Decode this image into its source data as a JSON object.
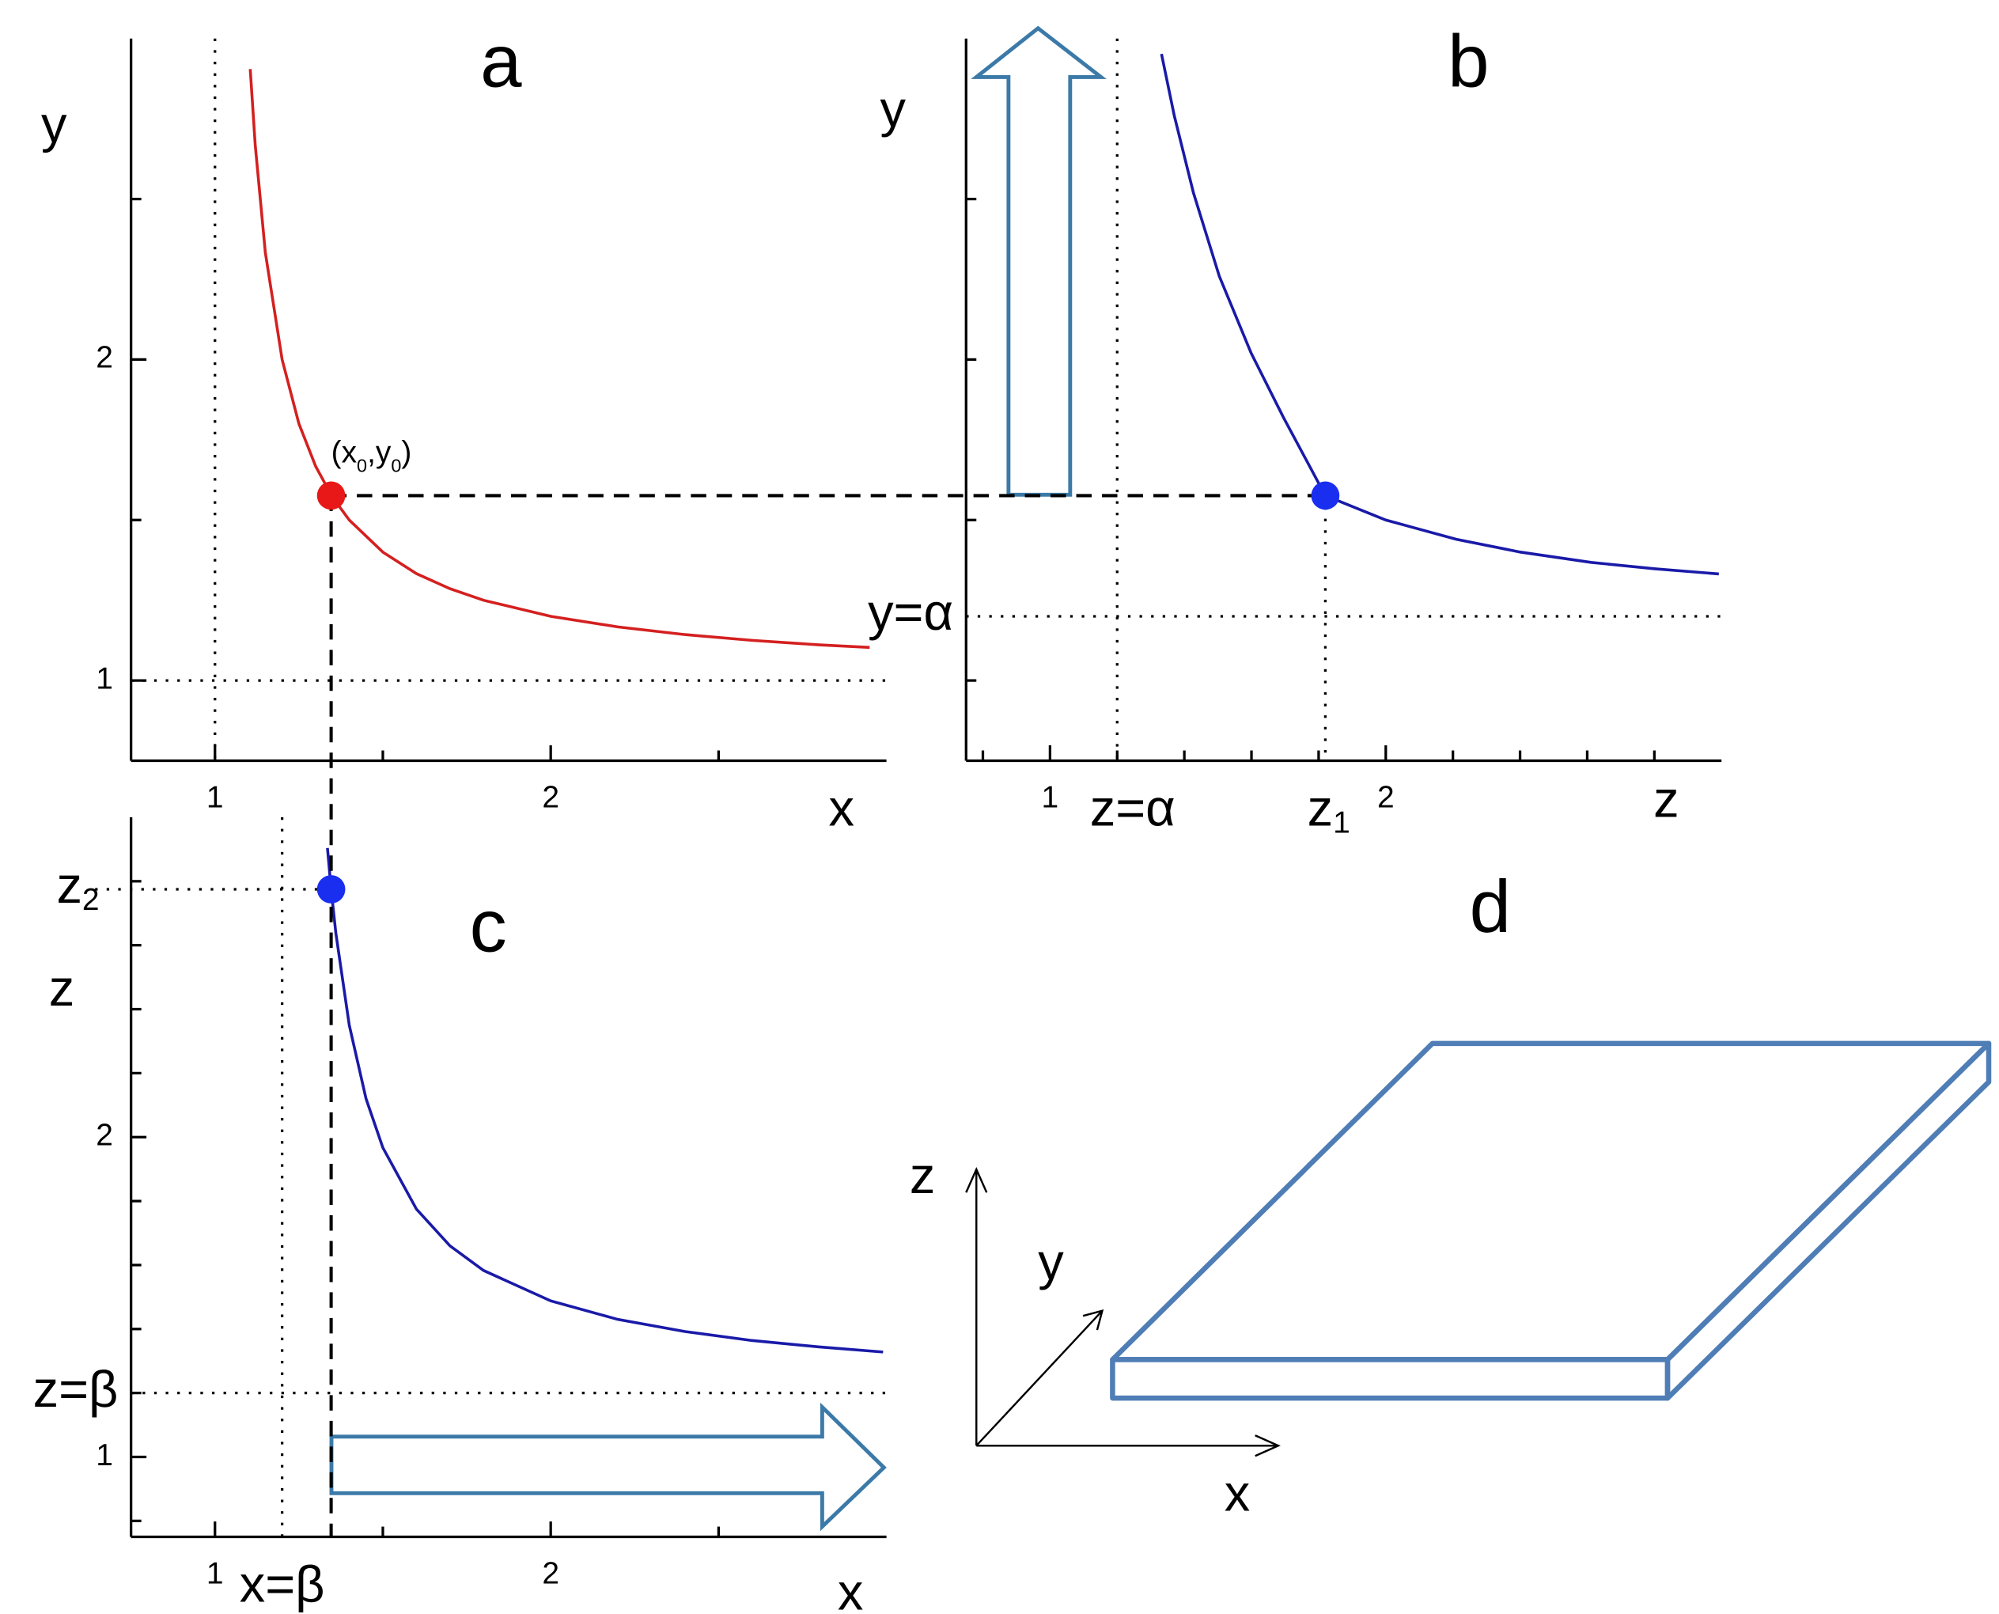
{
  "chart_data": [
    {
      "type": "line",
      "title": "a",
      "xlabel": "x",
      "ylabel": "y",
      "xlim": [
        0.75,
        3
      ],
      "ylim": [
        0.75,
        3
      ],
      "xticks": [
        1,
        2
      ],
      "yticks": [
        1,
        2
      ],
      "x_tick_marks": [
        1.5,
        2.5
      ],
      "y_tick_marks": [
        1.5,
        2.5
      ],
      "vline": 1,
      "hline": 1,
      "series": [
        {
          "color": "#d42020",
          "x": [
            1.105,
            1.12,
            1.15,
            1.2,
            1.25,
            1.3,
            1.35,
            1.4,
            1.5,
            1.6,
            1.7,
            1.8,
            2.0,
            2.2,
            2.4,
            2.6,
            2.8,
            2.95
          ],
          "values": [
            2.905,
            2.667,
            2.333,
            2.0,
            1.8,
            1.667,
            1.571,
            1.5,
            1.4,
            1.333,
            1.286,
            1.25,
            1.2,
            1.167,
            1.143,
            1.125,
            1.111,
            1.103
          ]
        }
      ],
      "point": {
        "x": 1.346,
        "y": 1.576,
        "color": "#e81818",
        "label": [
          "(x",
          "0",
          ",y",
          "0",
          ")"
        ]
      }
    },
    {
      "type": "line",
      "title": "b",
      "xlabel": "z",
      "ylabel": "y",
      "xlim": [
        0.75,
        3
      ],
      "ylim": [
        0.75,
        3
      ],
      "xticks": [
        1,
        2
      ],
      "x_tick_marks": [
        0.8,
        1.2,
        1.4,
        1.6,
        1.8,
        2.2,
        2.4,
        2.6,
        2.8
      ],
      "y_tick_marks": [
        1,
        1.5,
        2,
        2.5
      ],
      "vline": 1.2,
      "hline": 1.2,
      "vline_label": "z=α",
      "hline_label": "y=α",
      "series": [
        {
          "color": "#1a1aa8",
          "x": [
            1.332,
            1.37,
            1.427,
            1.504,
            1.599,
            1.695,
            1.82,
            2.0,
            2.21,
            2.401,
            2.611,
            2.802,
            2.992
          ],
          "values": [
            2.952,
            2.76,
            2.52,
            2.26,
            2.02,
            1.82,
            1.576,
            1.5,
            1.44,
            1.4,
            1.368,
            1.348,
            1.332
          ]
        }
      ],
      "point": {
        "x": 1.82,
        "y": 1.576,
        "color": "#1a2ef0",
        "label": [
          "z",
          "1"
        ]
      }
    },
    {
      "type": "line",
      "title": "c",
      "xlabel": "x",
      "ylabel": "z",
      "xlim": [
        0.75,
        3
      ],
      "ylim": [
        0.75,
        3
      ],
      "xticks": [
        1,
        2
      ],
      "yticks": [
        1,
        2
      ],
      "x_tick_marks": [
        1.5,
        2.5
      ],
      "y_tick_marks": [
        0.8,
        1.2,
        1.4,
        1.6,
        1.8,
        2.2,
        2.4,
        2.6,
        2.8
      ],
      "vline": 1.2,
      "hline": 1.2,
      "vline_label": "x=β",
      "hline_label": "z=β",
      "series": [
        {
          "color": "#1a1aa8",
          "x": [
            1.335,
            1.346,
            1.36,
            1.4,
            1.45,
            1.5,
            1.6,
            1.7,
            1.8,
            2.0,
            2.2,
            2.4,
            2.6,
            2.8,
            2.99
          ],
          "values": [
            2.904,
            2.775,
            2.638,
            2.35,
            2.12,
            1.967,
            1.775,
            1.66,
            1.583,
            1.488,
            1.43,
            1.392,
            1.364,
            1.344,
            1.328
          ]
        }
      ],
      "point": {
        "x": 1.346,
        "y": 2.775,
        "color": "#1a2ef0",
        "label": [
          "z",
          "2"
        ]
      }
    }
  ],
  "diagram": {
    "label": "d",
    "axes": {
      "z": "z",
      "y": "y",
      "x": "x"
    }
  }
}
